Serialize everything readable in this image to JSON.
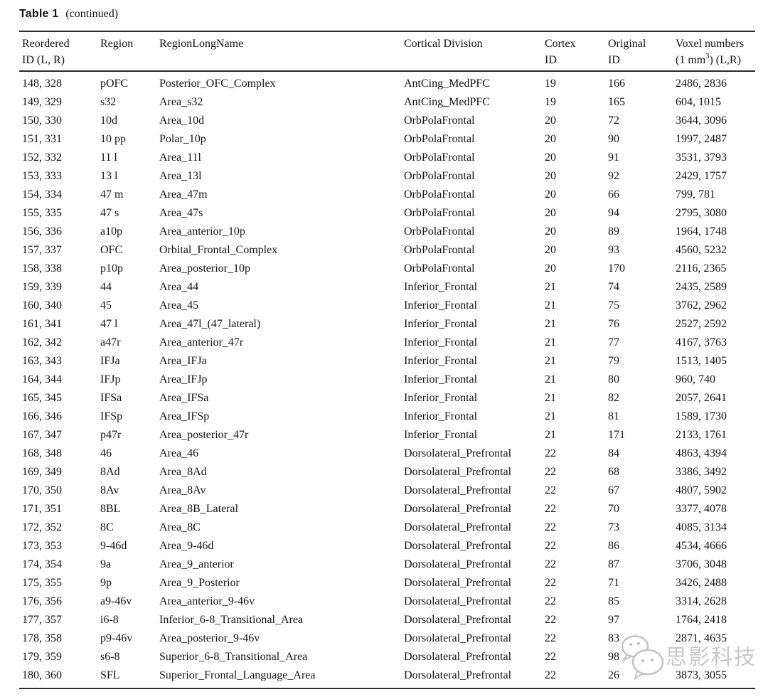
{
  "caption": {
    "label": "Table 1",
    "continued": "(continued)"
  },
  "table": {
    "headers": {
      "reordered": "Reordered\nID (L, R)",
      "region": "Region",
      "long_name": "RegionLongName",
      "division": "Cortical Division",
      "cortex": "Cortex\nID",
      "original": "Original\nID",
      "voxel_line1": "Voxel numbers",
      "voxel_line2_pre": "(1 mm",
      "voxel_sup": "3",
      "voxel_line2_post": ") (L,R)"
    },
    "field_names": [
      "reordered-id",
      "region",
      "region-long-name",
      "cortical-division",
      "cortex-id",
      "original-id",
      "voxel-numbers"
    ],
    "rows": [
      [
        "148, 328",
        "pOFC",
        "Posterior_OFC_Complex",
        "AntCing_MedPFC",
        "19",
        "166",
        "2486, 2836"
      ],
      [
        "149, 329",
        "s32",
        "Area_s32",
        "AntCing_MedPFC",
        "19",
        "165",
        "604, 1015"
      ],
      [
        "150, 330",
        "10d",
        "Area_10d",
        "OrbPolaFrontal",
        "20",
        "72",
        "3644, 3096"
      ],
      [
        "151, 331",
        "10 pp",
        "Polar_10p",
        "OrbPolaFrontal",
        "20",
        "90",
        "1997, 2487"
      ],
      [
        "152, 332",
        "11 l",
        "Area_11l",
        "OrbPolaFrontal",
        "20",
        "91",
        "3531, 3793"
      ],
      [
        "153, 333",
        "13 l",
        "Area_13l",
        "OrbPolaFrontal",
        "20",
        "92",
        "2429, 1757"
      ],
      [
        "154, 334",
        "47 m",
        "Area_47m",
        "OrbPolaFrontal",
        "20",
        "66",
        "799, 781"
      ],
      [
        "155, 335",
        "47 s",
        "Area_47s",
        "OrbPolaFrontal",
        "20",
        "94",
        "2795, 3080"
      ],
      [
        "156, 336",
        "a10p",
        "Area_anterior_10p",
        "OrbPolaFrontal",
        "20",
        "89",
        "1964, 1748"
      ],
      [
        "157, 337",
        "OFC",
        "Orbital_Frontal_Complex",
        "OrbPolaFrontal",
        "20",
        "93",
        "4560, 5232"
      ],
      [
        "158, 338",
        "p10p",
        "Area_posterior_10p",
        "OrbPolaFrontal",
        "20",
        "170",
        "2116, 2365"
      ],
      [
        "159, 339",
        "44",
        "Area_44",
        "Inferior_Frontal",
        "21",
        "74",
        "2435, 2589"
      ],
      [
        "160, 340",
        "45",
        "Area_45",
        "Inferior_Frontal",
        "21",
        "75",
        "3762, 2962"
      ],
      [
        "161, 341",
        "47 l",
        "Area_47l_(47_lateral)",
        "Inferior_Frontal",
        "21",
        "76",
        "2527, 2592"
      ],
      [
        "162, 342",
        "a47r",
        "Area_anterior_47r",
        "Inferior_Frontal",
        "21",
        "77",
        "4167, 3763"
      ],
      [
        "163, 343",
        "IFJa",
        "Area_IFJa",
        "Inferior_Frontal",
        "21",
        "79",
        "1513, 1405"
      ],
      [
        "164, 344",
        "IFJp",
        "Area_IFJp",
        "Inferior_Frontal",
        "21",
        "80",
        "960, 740"
      ],
      [
        "165, 345",
        "IFSa",
        "Area_IFSa",
        "Inferior_Frontal",
        "21",
        "82",
        "2057, 2641"
      ],
      [
        "166, 346",
        "IFSp",
        "Area_IFSp",
        "Inferior_Frontal",
        "21",
        "81",
        "1589, 1730"
      ],
      [
        "167, 347",
        "p47r",
        "Area_posterior_47r",
        "Inferior_Frontal",
        "21",
        "171",
        "2133, 1761"
      ],
      [
        "168, 348",
        "46",
        "Area_46",
        "Dorsolateral_Prefrontal",
        "22",
        "84",
        "4863, 4394"
      ],
      [
        "169, 349",
        "8Ad",
        "Area_8Ad",
        "Dorsolateral_Prefrontal",
        "22",
        "68",
        "3386, 3492"
      ],
      [
        "170, 350",
        "8Av",
        "Area_8Av",
        "Dorsolateral_Prefrontal",
        "22",
        "67",
        "4807, 5902"
      ],
      [
        "171, 351",
        "8BL",
        "Area_8B_Lateral",
        "Dorsolateral_Prefrontal",
        "22",
        "70",
        "3377, 4078"
      ],
      [
        "172, 352",
        "8C",
        "Area_8C",
        "Dorsolateral_Prefrontal",
        "22",
        "73",
        "4085, 3134"
      ],
      [
        "173, 353",
        "9-46d",
        "Area_9-46d",
        "Dorsolateral_Prefrontal",
        "22",
        "86",
        "4534, 4666"
      ],
      [
        "174, 354",
        "9a",
        "Area_9_anterior",
        "Dorsolateral_Prefrontal",
        "22",
        "87",
        "3706, 3048"
      ],
      [
        "175, 355",
        "9p",
        "Area_9_Posterior",
        "Dorsolateral_Prefrontal",
        "22",
        "71",
        "3426, 2488"
      ],
      [
        "176, 356",
        "a9-46v",
        "Area_anterior_9-46v",
        "Dorsolateral_Prefrontal",
        "22",
        "85",
        "3314, 2628"
      ],
      [
        "177, 357",
        "i6-8",
        "Inferior_6-8_Transitional_Area",
        "Dorsolateral_Prefrontal",
        "22",
        "97",
        "1764, 2418"
      ],
      [
        "178, 358",
        "p9-46v",
        "Area_posterior_9-46v",
        "Dorsolateral_Prefrontal",
        "22",
        "83",
        "2871, 4635"
      ],
      [
        "179, 359",
        "s6-8",
        "Superior_6-8_Transitional_Area",
        "Dorsolateral_Prefrontal",
        "22",
        "98",
        ""
      ],
      [
        "180, 360",
        "SFL",
        "Superior_Frontal_Language_Area",
        "Dorsolateral_Prefrontal",
        "22",
        "26",
        "3873, 3055"
      ]
    ]
  },
  "watermark": {
    "text": "思影科技",
    "icon": "wechat-icon",
    "color": "#c7c7c7"
  },
  "colors": {
    "text": "#141414",
    "rule": "#2c2c2c",
    "background": "#ffffff"
  }
}
